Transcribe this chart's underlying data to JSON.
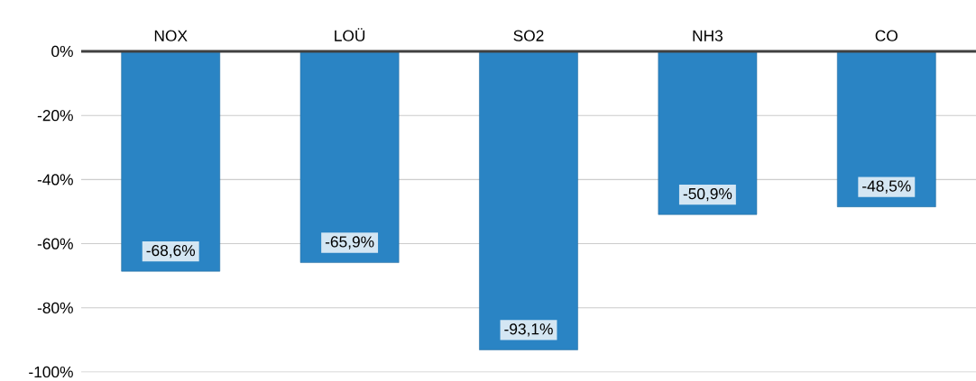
{
  "chart_data": {
    "type": "bar",
    "categories": [
      "NOX",
      "LOÜ",
      "SO2",
      "NH3",
      "CO"
    ],
    "values": [
      -68.6,
      -65.9,
      -93.1,
      -50.9,
      -48.5
    ],
    "value_labels": [
      "-68,6%",
      "-65,9%",
      "-93,1%",
      "-50,9%",
      "-48,5%"
    ],
    "color": "#2a84c4",
    "ylim": [
      -100,
      0
    ],
    "yticks": [
      {
        "value": 0,
        "label": "0%"
      },
      {
        "value": -20,
        "label": "-20%"
      },
      {
        "value": -40,
        "label": "-40%"
      },
      {
        "value": -60,
        "label": "-60%"
      },
      {
        "value": -80,
        "label": "-80%"
      },
      {
        "value": -100,
        "label": "-100%"
      }
    ],
    "grid": "y"
  }
}
